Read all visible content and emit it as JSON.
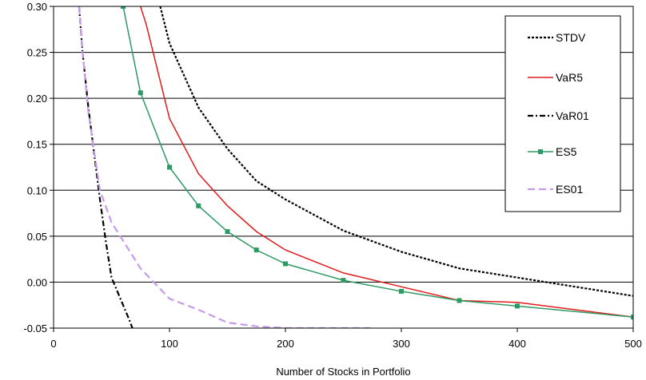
{
  "chart_data": {
    "type": "line",
    "title": "",
    "xlabel": "Number of Stocks in Portfolio",
    "ylabel": "",
    "xlim": [
      0,
      500
    ],
    "ylim": [
      -0.05,
      0.3
    ],
    "xticks": [
      0,
      100,
      200,
      300,
      400,
      500
    ],
    "yticks": [
      -0.05,
      0.0,
      0.05,
      0.1,
      0.15,
      0.2,
      0.25,
      0.3
    ],
    "xtick_labels": [
      "0",
      "100",
      "200",
      "300",
      "400",
      "500"
    ],
    "ytick_labels": [
      "-0.05",
      "0.00",
      "0.05",
      "0.10",
      "0.15",
      "0.20",
      "0.25",
      "0.30"
    ],
    "grid": "horizontal",
    "legend_position": "top-right",
    "series": [
      {
        "name": "STDV",
        "color": "#000000",
        "dash": "dotted",
        "marker": "none",
        "x": [
          92,
          100,
          125,
          150,
          175,
          200,
          250,
          300,
          350,
          400,
          450,
          500
        ],
        "y": [
          0.3,
          0.26,
          0.19,
          0.145,
          0.11,
          0.09,
          0.056,
          0.033,
          0.015,
          0.005,
          -0.005,
          -0.015
        ]
      },
      {
        "name": "VaR5",
        "color": "#e31a1c",
        "dash": "solid",
        "marker": "none",
        "x": [
          75,
          80,
          100,
          125,
          150,
          175,
          200,
          250,
          300,
          350,
          400,
          500
        ],
        "y": [
          0.3,
          0.28,
          0.178,
          0.118,
          0.083,
          0.055,
          0.035,
          0.01,
          -0.005,
          -0.02,
          -0.022,
          -0.038
        ]
      },
      {
        "name": "VaR01",
        "color": "#000000",
        "dash": "dashdot",
        "marker": "none",
        "x": [
          22,
          25,
          30,
          35,
          40,
          45,
          50,
          55,
          60,
          65,
          68
        ],
        "y": [
          0.3,
          0.25,
          0.19,
          0.14,
          0.09,
          0.045,
          0.005,
          -0.01,
          -0.025,
          -0.04,
          -0.05
        ]
      },
      {
        "name": "ES5",
        "color": "#2e9a63",
        "dash": "solid",
        "marker": "square",
        "x": [
          60,
          75,
          100,
          125,
          150,
          175,
          200,
          250,
          300,
          350,
          400,
          500
        ],
        "y": [
          0.3,
          0.206,
          0.125,
          0.083,
          0.055,
          0.035,
          0.02,
          0.002,
          -0.01,
          -0.02,
          -0.026,
          -0.038
        ]
      },
      {
        "name": "ES01",
        "color": "#c89be8",
        "dash": "dashed",
        "marker": "none",
        "x": [
          22,
          25,
          30,
          40,
          50,
          75,
          100,
          125,
          150,
          175,
          200,
          250,
          275
        ],
        "y": [
          0.3,
          0.25,
          0.185,
          0.1,
          0.065,
          0.015,
          -0.018,
          -0.03,
          -0.044,
          -0.048,
          -0.05,
          -0.05,
          -0.05
        ]
      }
    ]
  }
}
